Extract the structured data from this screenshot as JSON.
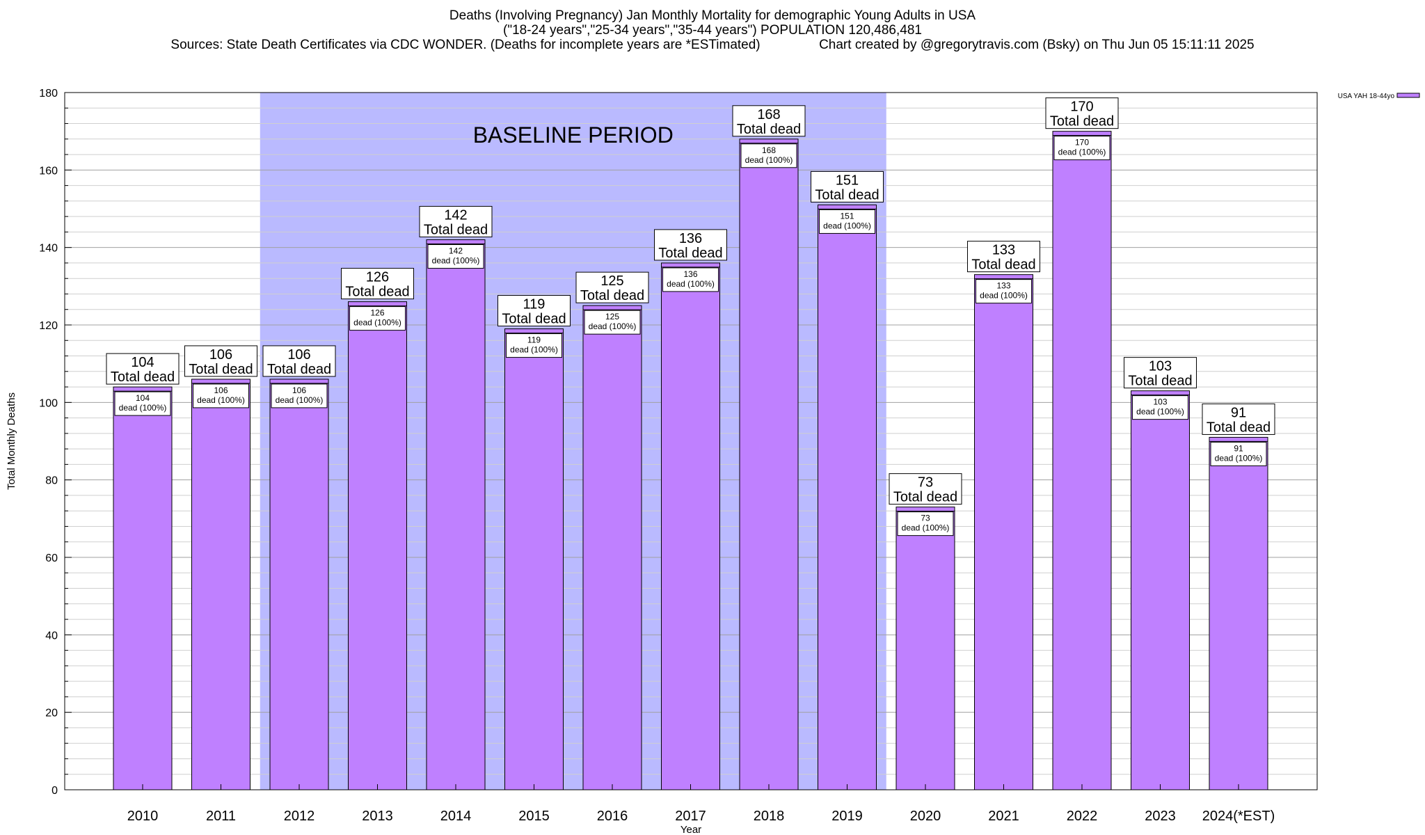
{
  "header": {
    "title_line1": "Deaths (Involving Pregnancy) Jan Monthly Mortality for demographic Young Adults in USA",
    "title_line2": "(\"18-24 years\",\"25-34 years\",\"35-44 years\") POPULATION 120,486,481",
    "title_line3": "Sources: State Death Certificates via CDC WONDER. (Deaths for incomplete years are *ESTimated)                Chart created by @gregorytravis.com (Bsky) on Thu Jun 05 15:11:11 2025"
  },
  "colors": {
    "bar": "#bf80ff",
    "baseline_band": "#babaff",
    "grid_major": "#a0a0a0",
    "grid_minor": "#cfcfcf"
  },
  "chart_data": {
    "type": "bar",
    "categories": [
      "2010",
      "2011",
      "2012",
      "2013",
      "2014",
      "2015",
      "2016",
      "2017",
      "2018",
      "2019",
      "2020",
      "2021",
      "2022",
      "2023",
      "2024(*EST)"
    ],
    "series": [
      {
        "name": "USA YAH 18-44yo",
        "values": [
          104,
          106,
          106,
          126,
          142,
          119,
          125,
          136,
          168,
          151,
          73,
          133,
          170,
          103,
          91
        ]
      }
    ],
    "top_label_suffix": "Total dead",
    "inner_label_suffix": "dead (100%)",
    "xlabel": "Year",
    "ylabel": "Total Monthly Deaths",
    "ylim": [
      0,
      180
    ],
    "yticks": [
      0,
      20,
      40,
      60,
      80,
      100,
      120,
      140,
      160,
      180
    ],
    "minor_tick_step": 4,
    "grid": true,
    "legend": {
      "position": "top-right",
      "label": "USA YAH 18-44yo"
    },
    "baseline_period": {
      "label": "BASELINE PERIOD",
      "from": "2012",
      "to": "2019"
    }
  }
}
